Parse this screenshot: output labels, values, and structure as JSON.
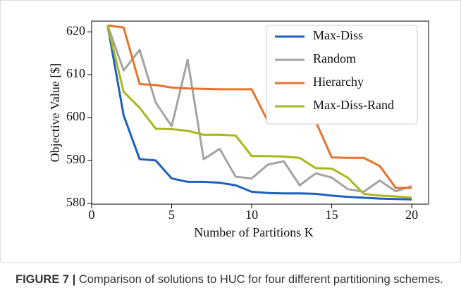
{
  "chart_data": {
    "type": "line",
    "x_label": "Number of Partitions K",
    "y_label": "Objective Value [$]",
    "x": [
      1,
      2,
      3,
      4,
      5,
      6,
      7,
      8,
      9,
      10,
      11,
      12,
      13,
      14,
      15,
      16,
      17,
      18,
      19,
      20
    ],
    "series": [
      {
        "name": "Max-Diss",
        "color": "#1f5fc0",
        "values": [
          621.5,
          600.5,
          590.3,
          590.0,
          585.8,
          585.0,
          585.0,
          584.8,
          584.2,
          582.7,
          582.4,
          582.3,
          582.3,
          582.2,
          581.8,
          581.5,
          581.3,
          581.1,
          581.0,
          580.9
        ]
      },
      {
        "name": "Random",
        "color": "#a3a3a3",
        "values": [
          621.5,
          611.0,
          615.8,
          603.5,
          598.0,
          613.5,
          590.3,
          592.7,
          586.2,
          585.8,
          589.0,
          589.8,
          584.2,
          587.0,
          586.0,
          583.3,
          582.7,
          585.3,
          582.8,
          584.0
        ]
      },
      {
        "name": "Hierarchy",
        "color": "#e8712b",
        "values": [
          621.5,
          621.0,
          607.8,
          607.6,
          607.0,
          606.8,
          606.7,
          606.6,
          606.6,
          606.6,
          599.2,
          599.2,
          599.1,
          599.1,
          590.7,
          590.6,
          590.6,
          588.7,
          583.6,
          583.6
        ]
      },
      {
        "name": "Max-Diss-Rand",
        "color": "#a8b81c",
        "values": [
          621.5,
          606.0,
          602.3,
          597.4,
          597.3,
          596.9,
          596.0,
          596.0,
          595.8,
          591.0,
          591.0,
          590.9,
          590.6,
          588.2,
          588.1,
          586.0,
          582.2,
          581.8,
          581.6,
          581.3
        ]
      }
    ],
    "xlim": [
      0,
      21.05
    ],
    "xticks": [
      0,
      5,
      10,
      15,
      20
    ],
    "ylim": [
      579.8,
      622.5
    ],
    "yticks": [
      580,
      590,
      600,
      610,
      620
    ],
    "legend": "upper right"
  },
  "caption_label": "FIGURE 7 |",
  "caption": "Comparison of solutions to HUC for four different partitioning schemes."
}
